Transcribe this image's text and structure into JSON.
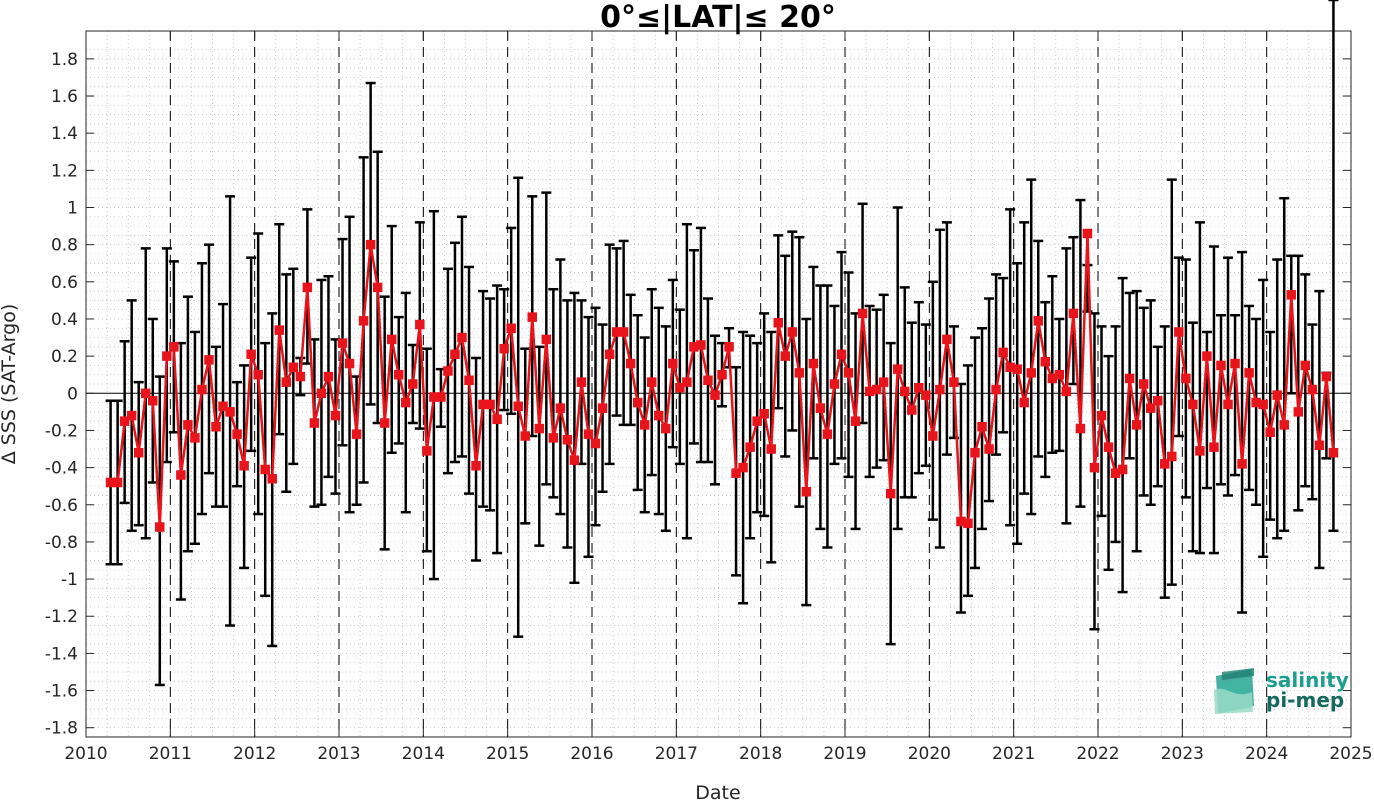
{
  "colors": {
    "series": "#e8141c",
    "errorbar": "#000000",
    "logo_top": "#1f9e8e",
    "logo_bottom": "#17695e"
  },
  "logo": {
    "line1": "salinity",
    "line2": "pi-mep"
  },
  "chart_data": {
    "type": "line",
    "title": "0°≤|LAT|≤ 20°",
    "xlabel": "Date",
    "ylabel": "Δ SSS (SAT-Argo)",
    "xlim": [
      2010,
      2025
    ],
    "ylim": [
      -1.85,
      1.95
    ],
    "x_ticks": [
      "2010",
      "2011",
      "2012",
      "2013",
      "2014",
      "2015",
      "2016",
      "2017",
      "2018",
      "2019",
      "2020",
      "2021",
      "2022",
      "2023",
      "2024",
      "2025"
    ],
    "y_ticks": [
      1.8,
      1.6,
      1.4,
      1.2,
      1,
      0.8,
      0.6,
      0.4,
      0.2,
      0,
      -0.2,
      -0.4,
      -0.6,
      -0.8,
      -1,
      -1.2,
      -1.4,
      -1.6,
      -1.8
    ],
    "y_tick_labels": [
      "1.8",
      "1.6",
      "1.4",
      "1.2",
      "1",
      "0.8",
      "0.6",
      "0.4",
      "0.2",
      "0",
      "-0.2",
      "-0.4",
      "-0.6",
      "-0.8",
      "-1",
      "-1.2",
      "-1.4",
      "-1.6",
      "-1.8"
    ],
    "year_lines": [
      2011,
      2012,
      2013,
      2014,
      2015,
      2016,
      2017,
      2018,
      2019,
      2020,
      2021,
      2022,
      2023,
      2024
    ],
    "grid": "minor dotted",
    "x_start": "2010-04",
    "series": [
      {
        "values": [
          -0.48,
          -0.48,
          -0.15,
          -0.12,
          -0.32,
          0,
          -0.04,
          -0.72,
          0.2,
          0.25,
          -0.44,
          -0.17,
          -0.24,
          0.02,
          0.18,
          -0.18,
          -0.07,
          -0.1,
          -0.22,
          -0.39,
          0.21,
          0.1,
          -0.41,
          -0.46,
          0.34,
          0.06,
          0.14,
          0.09,
          0.57,
          -0.16,
          0,
          0.09,
          -0.12,
          0.27,
          0.16,
          -0.22,
          0.39,
          0.8,
          0.57,
          -0.16,
          0.29,
          0.1,
          -0.05,
          0.05,
          0.37,
          -0.31,
          -0.02,
          -0.02,
          0.12,
          0.21,
          0.3,
          0.07,
          -0.39,
          -0.06,
          -0.06,
          -0.14,
          0.24,
          0.35,
          -0.07,
          -0.23,
          0.41,
          -0.19,
          0.29,
          -0.24,
          -0.08,
          -0.25,
          -0.36,
          0.06,
          -0.22,
          -0.27,
          -0.08,
          0.21,
          0.33,
          0.33,
          0.16,
          -0.05,
          -0.17,
          0.06,
          -0.12,
          -0.19,
          0.16,
          0.03,
          0.06,
          0.25,
          0.26,
          0.07,
          -0.01,
          0.1,
          0.25,
          -0.43,
          -0.4,
          -0.29,
          -0.15,
          -0.11,
          -0.3,
          0.38,
          0.2,
          0.33,
          0.11,
          -0.53,
          0.16,
          -0.08,
          -0.22,
          0.05,
          0.21,
          0.11,
          -0.15,
          0.43,
          0.01,
          0.02,
          0.06,
          -0.54,
          0.13,
          0.01,
          -0.09,
          0.03,
          -0.01,
          -0.23,
          0.02,
          0.29,
          0.06,
          -0.69,
          -0.7,
          -0.32,
          -0.18,
          -0.3,
          0.02,
          0.22,
          0.14,
          0.13,
          -0.05,
          0.11,
          0.39,
          0.17,
          0.08,
          0.1,
          0.01,
          0.43,
          -0.19,
          0.86,
          -0.4,
          -0.12,
          -0.29,
          -0.43,
          -0.41,
          0.08,
          -0.17,
          0.05,
          -0.08,
          -0.04,
          -0.38,
          -0.34,
          0.33,
          0.08,
          -0.06,
          -0.31,
          0.2,
          -0.29,
          0.15,
          -0.06,
          0.16,
          -0.38,
          0.11,
          -0.05,
          -0.06,
          -0.21,
          -0.01,
          -0.17,
          0.53,
          -0.1,
          0.15,
          0.02,
          -0.28,
          0.09,
          -0.32
        ],
        "err_hi": [
          -0.04,
          -0.04,
          0.28,
          0.5,
          0.06,
          0.78,
          0.4,
          0.09,
          0.78,
          0.71,
          0.27,
          0.52,
          0.33,
          0.7,
          0.8,
          0.25,
          0.48,
          1.06,
          0.06,
          0.15,
          0.73,
          0.86,
          0.27,
          0.43,
          0.91,
          0.64,
          0.67,
          0.19,
          0.99,
          0.29,
          0.61,
          0.63,
          0.29,
          0.83,
          0.95,
          0.09,
          1.27,
          1.67,
          1.3,
          0.52,
          0.9,
          0.41,
          0.54,
          0.26,
          0.92,
          0.24,
          0.98,
          0.13,
          0.67,
          0.81,
          0.95,
          0.68,
          0.19,
          0.55,
          0.51,
          0.58,
          0.56,
          0.89,
          1.16,
          0.24,
          1.06,
          0.25,
          1.08,
          0.56,
          0.72,
          0.5,
          0.54,
          0.5,
          0.41,
          0.46,
          0.37,
          0.8,
          0.78,
          0.82,
          0.53,
          0.42,
          0.3,
          0.56,
          0.46,
          0.36,
          0.61,
          0.45,
          0.91,
          0.77,
          0.89,
          0.51,
          0.31,
          0.27,
          0.35,
          0.14,
          0.33,
          0.31,
          0.27,
          0.43,
          0.33,
          0.85,
          0.74,
          0.87,
          0.84,
          0.4,
          0.68,
          0.58,
          0.58,
          0.47,
          0.76,
          0.65,
          0.43,
          1.02,
          0.47,
          0.45,
          0.53,
          0.27,
          1.0,
          0.57,
          0.38,
          0.49,
          0.37,
          0.6,
          0.88,
          0.92,
          0.36,
          0.05,
          0.15,
          0.3,
          0.35,
          0.51,
          0.64,
          0.62,
          0.99,
          0.7,
          0.92,
          1.15,
          0.82,
          0.49,
          0.63,
          0.4,
          0.78,
          0.84,
          1.04,
          0.44,
          0.43,
          0.36,
          0.2,
          0.36,
          0.62,
          0.54,
          0.55,
          0.46,
          0.5,
          0.25,
          0.36,
          1.15,
          0.73,
          0.72,
          0.38,
          0.92,
          0.33,
          0.79,
          0.42,
          0.73,
          0.42,
          0.76,
          0.47,
          0.4,
          0.61,
          0.33,
          0.72,
          1.05,
          0.74,
          0.74,
          0.64,
          0.37,
          0.55,
          0.11
        ],
        "err_lo": [
          -0.92,
          -0.92,
          -0.59,
          -0.74,
          -0.71,
          -0.78,
          -0.48,
          -1.57,
          -0.37,
          -0.21,
          -1.11,
          -0.85,
          -0.81,
          -0.65,
          -0.43,
          -0.61,
          -0.61,
          -1.25,
          -0.5,
          -0.94,
          -0.31,
          -0.65,
          -1.09,
          -1.36,
          -0.22,
          -0.53,
          -0.38,
          -0.01,
          0.16,
          -0.61,
          -0.6,
          -0.45,
          -0.54,
          -0.28,
          -0.64,
          -0.6,
          -0.48,
          -0.06,
          -0.16,
          -0.84,
          -0.32,
          -0.27,
          -0.64,
          -0.16,
          -0.19,
          -0.85,
          -1.0,
          -0.18,
          -0.43,
          -0.37,
          -0.34,
          -0.54,
          -0.9,
          -0.61,
          -0.63,
          -0.86,
          -0.09,
          -0.11,
          -1.31,
          -0.7,
          -0.23,
          -0.82,
          -0.49,
          -0.56,
          -0.65,
          -0.83,
          -1.02,
          -0.38,
          -0.88,
          -0.71,
          -0.53,
          -0.38,
          -0.12,
          -0.17,
          -0.17,
          -0.52,
          -0.64,
          -0.44,
          -0.65,
          -0.74,
          -0.29,
          -0.38,
          -0.78,
          -0.27,
          -0.37,
          -0.37,
          -0.49,
          -0.07,
          0.14,
          -0.98,
          -1.13,
          -0.78,
          -0.64,
          -0.66,
          -0.91,
          -0.08,
          -0.34,
          -0.2,
          -0.61,
          -1.14,
          -0.35,
          -0.73,
          -0.83,
          -0.38,
          -0.35,
          -0.45,
          -0.73,
          -0.16,
          -0.45,
          -0.4,
          -0.36,
          -1.35,
          -0.73,
          -0.56,
          -0.56,
          -0.43,
          -0.39,
          -0.68,
          -0.83,
          -0.33,
          -0.24,
          -1.18,
          -1.09,
          -0.94,
          -0.73,
          -0.58,
          -0.33,
          -0.21,
          -0.71,
          -0.81,
          -0.54,
          -0.65,
          -0.34,
          -0.45,
          -0.32,
          -0.31,
          -0.7,
          0.05,
          -0.61,
          0.69,
          -1.27,
          -0.66,
          -0.95,
          -0.8,
          -1.07,
          -0.35,
          -0.85,
          -0.55,
          -0.6,
          -0.5,
          -1.1,
          -1.03,
          -0.23,
          -0.56,
          -0.85,
          -0.86,
          -0.51,
          -0.86,
          -0.49,
          -0.55,
          -0.44,
          -1.18,
          -0.52,
          -0.6,
          -0.88,
          -0.68,
          -0.78,
          -0.74,
          0.0,
          -0.63,
          -0.5,
          -0.57,
          -0.94,
          -0.35,
          -0.74
        ]
      }
    ]
  }
}
